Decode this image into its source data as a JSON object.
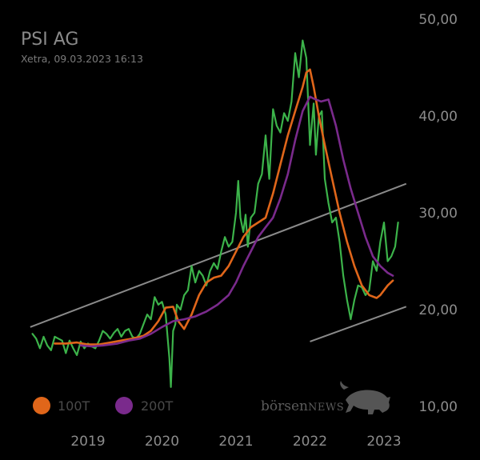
{
  "header": {
    "title": "PSI AG",
    "subtitle": "Xetra, 09.03.2023 16:13"
  },
  "legend": {
    "items": [
      {
        "label": "100T",
        "color": "#e0661a"
      },
      {
        "label": "200T",
        "color": "#7a2a8c"
      }
    ]
  },
  "brand": {
    "part1": "börsen",
    "part2": "NEWS",
    "icon": "bull-icon"
  },
  "colors": {
    "price": "#3cb34a",
    "ma100": "#e0661a",
    "ma200": "#7a2a8c",
    "trend": "#8a8a8a"
  },
  "chart_data": {
    "type": "line",
    "y_tick_labels": [
      "50,00",
      "40,00",
      "30,00",
      "20,00",
      "10,00"
    ],
    "y_ticks": [
      50,
      40,
      30,
      20,
      10
    ],
    "x_tick_labels": [
      "2019",
      "2020",
      "2021",
      "2022",
      "2023"
    ],
    "x_ticks": [
      2019,
      2020,
      2021,
      2022,
      2023
    ],
    "xlim": [
      2018.2,
      2023.3
    ],
    "ylim": [
      10,
      50
    ],
    "grid": false,
    "legend_position": "bottom-left",
    "series": [
      {
        "name": "",
        "key": "price",
        "x": [
          2018.25,
          2018.3,
          2018.35,
          2018.4,
          2018.45,
          2018.5,
          2018.55,
          2018.6,
          2018.65,
          2018.7,
          2018.75,
          2018.8,
          2018.85,
          2018.9,
          2018.95,
          2019.0,
          2019.05,
          2019.1,
          2019.15,
          2019.2,
          2019.25,
          2019.3,
          2019.35,
          2019.4,
          2019.45,
          2019.5,
          2019.55,
          2019.6,
          2019.65,
          2019.7,
          2019.75,
          2019.8,
          2019.85,
          2019.9,
          2019.95,
          2020.0,
          2020.05,
          2020.1,
          2020.12,
          2020.15,
          2020.18,
          2020.2,
          2020.25,
          2020.3,
          2020.35,
          2020.4,
          2020.45,
          2020.5,
          2020.55,
          2020.6,
          2020.65,
          2020.7,
          2020.75,
          2020.8,
          2020.85,
          2020.9,
          2020.95,
          2021.0,
          2021.03,
          2021.06,
          2021.1,
          2021.13,
          2021.16,
          2021.2,
          2021.25,
          2021.3,
          2021.35,
          2021.4,
          2021.45,
          2021.5,
          2021.55,
          2021.6,
          2021.65,
          2021.7,
          2021.75,
          2021.8,
          2021.85,
          2021.9,
          2021.95,
          2022.0,
          2022.05,
          2022.08,
          2022.12,
          2022.16,
          2022.2,
          2022.25,
          2022.3,
          2022.35,
          2022.4,
          2022.45,
          2022.5,
          2022.55,
          2022.6,
          2022.65,
          2022.7,
          2022.75,
          2022.8,
          2022.85,
          2022.9,
          2022.95,
          2023.0,
          2023.05,
          2023.1,
          2023.15,
          2023.19
        ],
        "y": [
          17.5,
          17.0,
          16.0,
          17.2,
          16.3,
          15.8,
          17.2,
          17.0,
          16.8,
          15.5,
          16.8,
          16.0,
          15.3,
          16.7,
          16.0,
          16.5,
          16.2,
          16.0,
          16.8,
          17.8,
          17.5,
          17.0,
          17.6,
          18.0,
          17.2,
          17.8,
          18.0,
          17.2,
          17.0,
          17.5,
          18.5,
          19.5,
          19.0,
          21.3,
          20.5,
          20.8,
          19.5,
          15.0,
          12.0,
          17.8,
          18.5,
          20.5,
          20.0,
          21.5,
          22.0,
          24.5,
          22.8,
          24.0,
          23.5,
          22.5,
          24.0,
          24.8,
          24.2,
          26.0,
          27.5,
          26.5,
          27.0,
          30.0,
          33.3,
          29.5,
          28.0,
          29.8,
          26.5,
          29.5,
          30.0,
          33.0,
          34.0,
          38.0,
          33.5,
          40.7,
          39.0,
          38.3,
          40.3,
          39.5,
          41.5,
          46.5,
          44.0,
          47.8,
          46.0,
          37.0,
          41.3,
          36.0,
          40.0,
          40.5,
          33.5,
          31.0,
          29.0,
          29.5,
          27.0,
          23.5,
          21.0,
          19.0,
          21.0,
          22.5,
          22.3,
          21.5,
          22.0,
          25.0,
          24.0,
          27.0,
          29.0,
          25.0,
          25.5,
          26.5,
          29.0
        ]
      },
      {
        "name": "100T",
        "key": "ma100",
        "x": [
          2018.55,
          2018.7,
          2018.85,
          2019.0,
          2019.15,
          2019.3,
          2019.45,
          2019.6,
          2019.75,
          2019.85,
          2019.95,
          2020.05,
          2020.15,
          2020.22,
          2020.3,
          2020.4,
          2020.5,
          2020.6,
          2020.7,
          2020.8,
          2020.9,
          2021.0,
          2021.1,
          2021.2,
          2021.3,
          2021.4,
          2021.5,
          2021.6,
          2021.7,
          2021.8,
          2021.9,
          2021.95,
          2022.0,
          2022.05,
          2022.12,
          2022.2,
          2022.3,
          2022.4,
          2022.5,
          2022.6,
          2022.7,
          2022.8,
          2022.9,
          2022.95,
          2023.0,
          2023.05,
          2023.12
        ],
        "y": [
          16.5,
          16.5,
          16.6,
          16.4,
          16.4,
          16.6,
          16.8,
          17.0,
          17.3,
          17.8,
          18.8,
          20.2,
          20.3,
          18.8,
          18.0,
          19.5,
          21.5,
          22.8,
          23.3,
          23.5,
          24.5,
          26.0,
          27.5,
          28.5,
          29.0,
          29.5,
          32.0,
          35.0,
          38.0,
          40.5,
          43.0,
          44.5,
          44.8,
          43.0,
          40.0,
          37.0,
          33.5,
          30.0,
          27.0,
          24.5,
          22.5,
          21.5,
          21.2,
          21.5,
          22.0,
          22.5,
          23.0
        ]
      },
      {
        "name": "200T",
        "key": "ma200",
        "x": [
          2018.9,
          2019.05,
          2019.2,
          2019.4,
          2019.55,
          2019.7,
          2019.85,
          2020.0,
          2020.15,
          2020.3,
          2020.45,
          2020.6,
          2020.75,
          2020.9,
          2021.0,
          2021.1,
          2021.2,
          2021.3,
          2021.4,
          2021.5,
          2021.6,
          2021.7,
          2021.8,
          2021.9,
          2022.0,
          2022.05,
          2022.15,
          2022.25,
          2022.35,
          2022.45,
          2022.55,
          2022.65,
          2022.75,
          2022.85,
          2022.95,
          2023.05,
          2023.12
        ],
        "y": [
          16.3,
          16.2,
          16.3,
          16.5,
          16.8,
          17.0,
          17.5,
          18.2,
          18.8,
          19.0,
          19.3,
          19.8,
          20.5,
          21.5,
          22.8,
          24.5,
          26.0,
          27.5,
          28.5,
          29.5,
          31.5,
          34.0,
          37.5,
          40.5,
          42.0,
          41.8,
          41.5,
          41.7,
          39.0,
          35.5,
          32.5,
          30.0,
          27.5,
          25.5,
          24.5,
          23.8,
          23.5
        ]
      }
    ],
    "trend_lines": [
      {
        "x": [
          2018.22,
          2023.3
        ],
        "y": [
          18.2,
          33.0
        ]
      },
      {
        "x": [
          2022.0,
          2023.3
        ],
        "y": [
          16.7,
          20.3
        ]
      }
    ]
  }
}
